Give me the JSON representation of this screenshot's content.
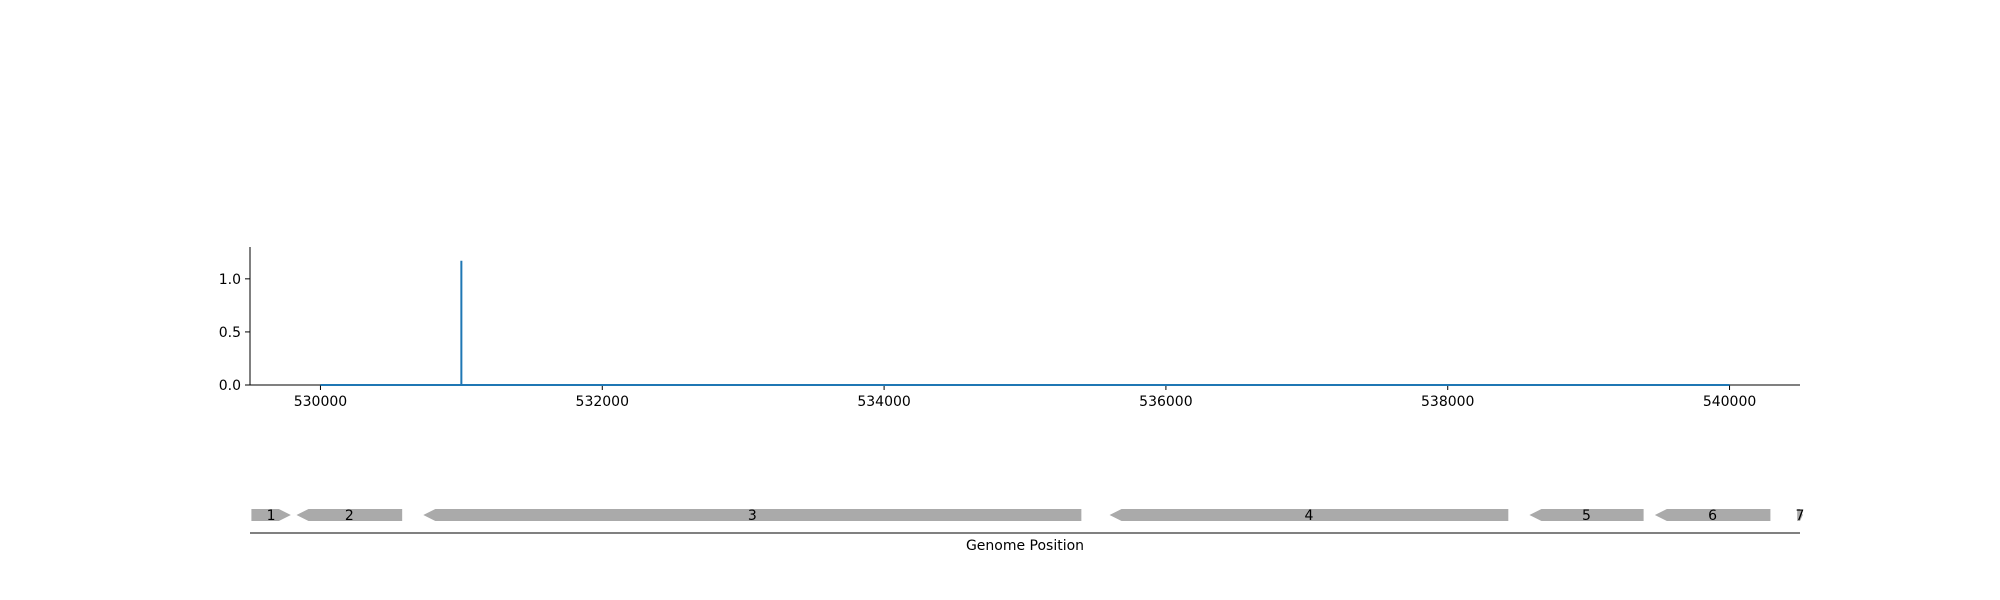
{
  "chart_data": [
    {
      "type": "line",
      "title": "",
      "xlabel": "",
      "ylabel": "",
      "xlim": [
        529500,
        540500
      ],
      "ylim": [
        0,
        1.3
      ],
      "x_ticks": [
        530000,
        532000,
        534000,
        536000,
        538000,
        540000
      ],
      "x_tick_labels": [
        "530000",
        "532000",
        "534000",
        "536000",
        "538000",
        "540000"
      ],
      "y_ticks": [
        0.0,
        0.5,
        1.0
      ],
      "y_tick_labels": [
        "0.0",
        "0.5",
        "1.0"
      ],
      "grid": false,
      "series": [
        {
          "color": "#1f77b4",
          "x": [
            530000,
            531000,
            531000,
            531000,
            540000
          ],
          "y": [
            0,
            0,
            1.17,
            0,
            0
          ]
        }
      ]
    },
    {
      "type": "gene_track",
      "xlabel": "Genome Position",
      "color": "#aaaaaa",
      "genes": [
        {
          "label": "1",
          "start": 529510,
          "end": 529790,
          "strand": "+"
        },
        {
          "label": "2",
          "start": 529830,
          "end": 530580,
          "strand": "-"
        },
        {
          "label": "3",
          "start": 530730,
          "end": 535400,
          "strand": "-"
        },
        {
          "label": "4",
          "start": 535600,
          "end": 538430,
          "strand": "-"
        },
        {
          "label": "5",
          "start": 538580,
          "end": 539390,
          "strand": "-"
        },
        {
          "label": "6",
          "start": 539470,
          "end": 540290,
          "strand": "-"
        },
        {
          "label": "7",
          "start": 540480,
          "end": 540520,
          "strand": "+"
        }
      ]
    }
  ]
}
